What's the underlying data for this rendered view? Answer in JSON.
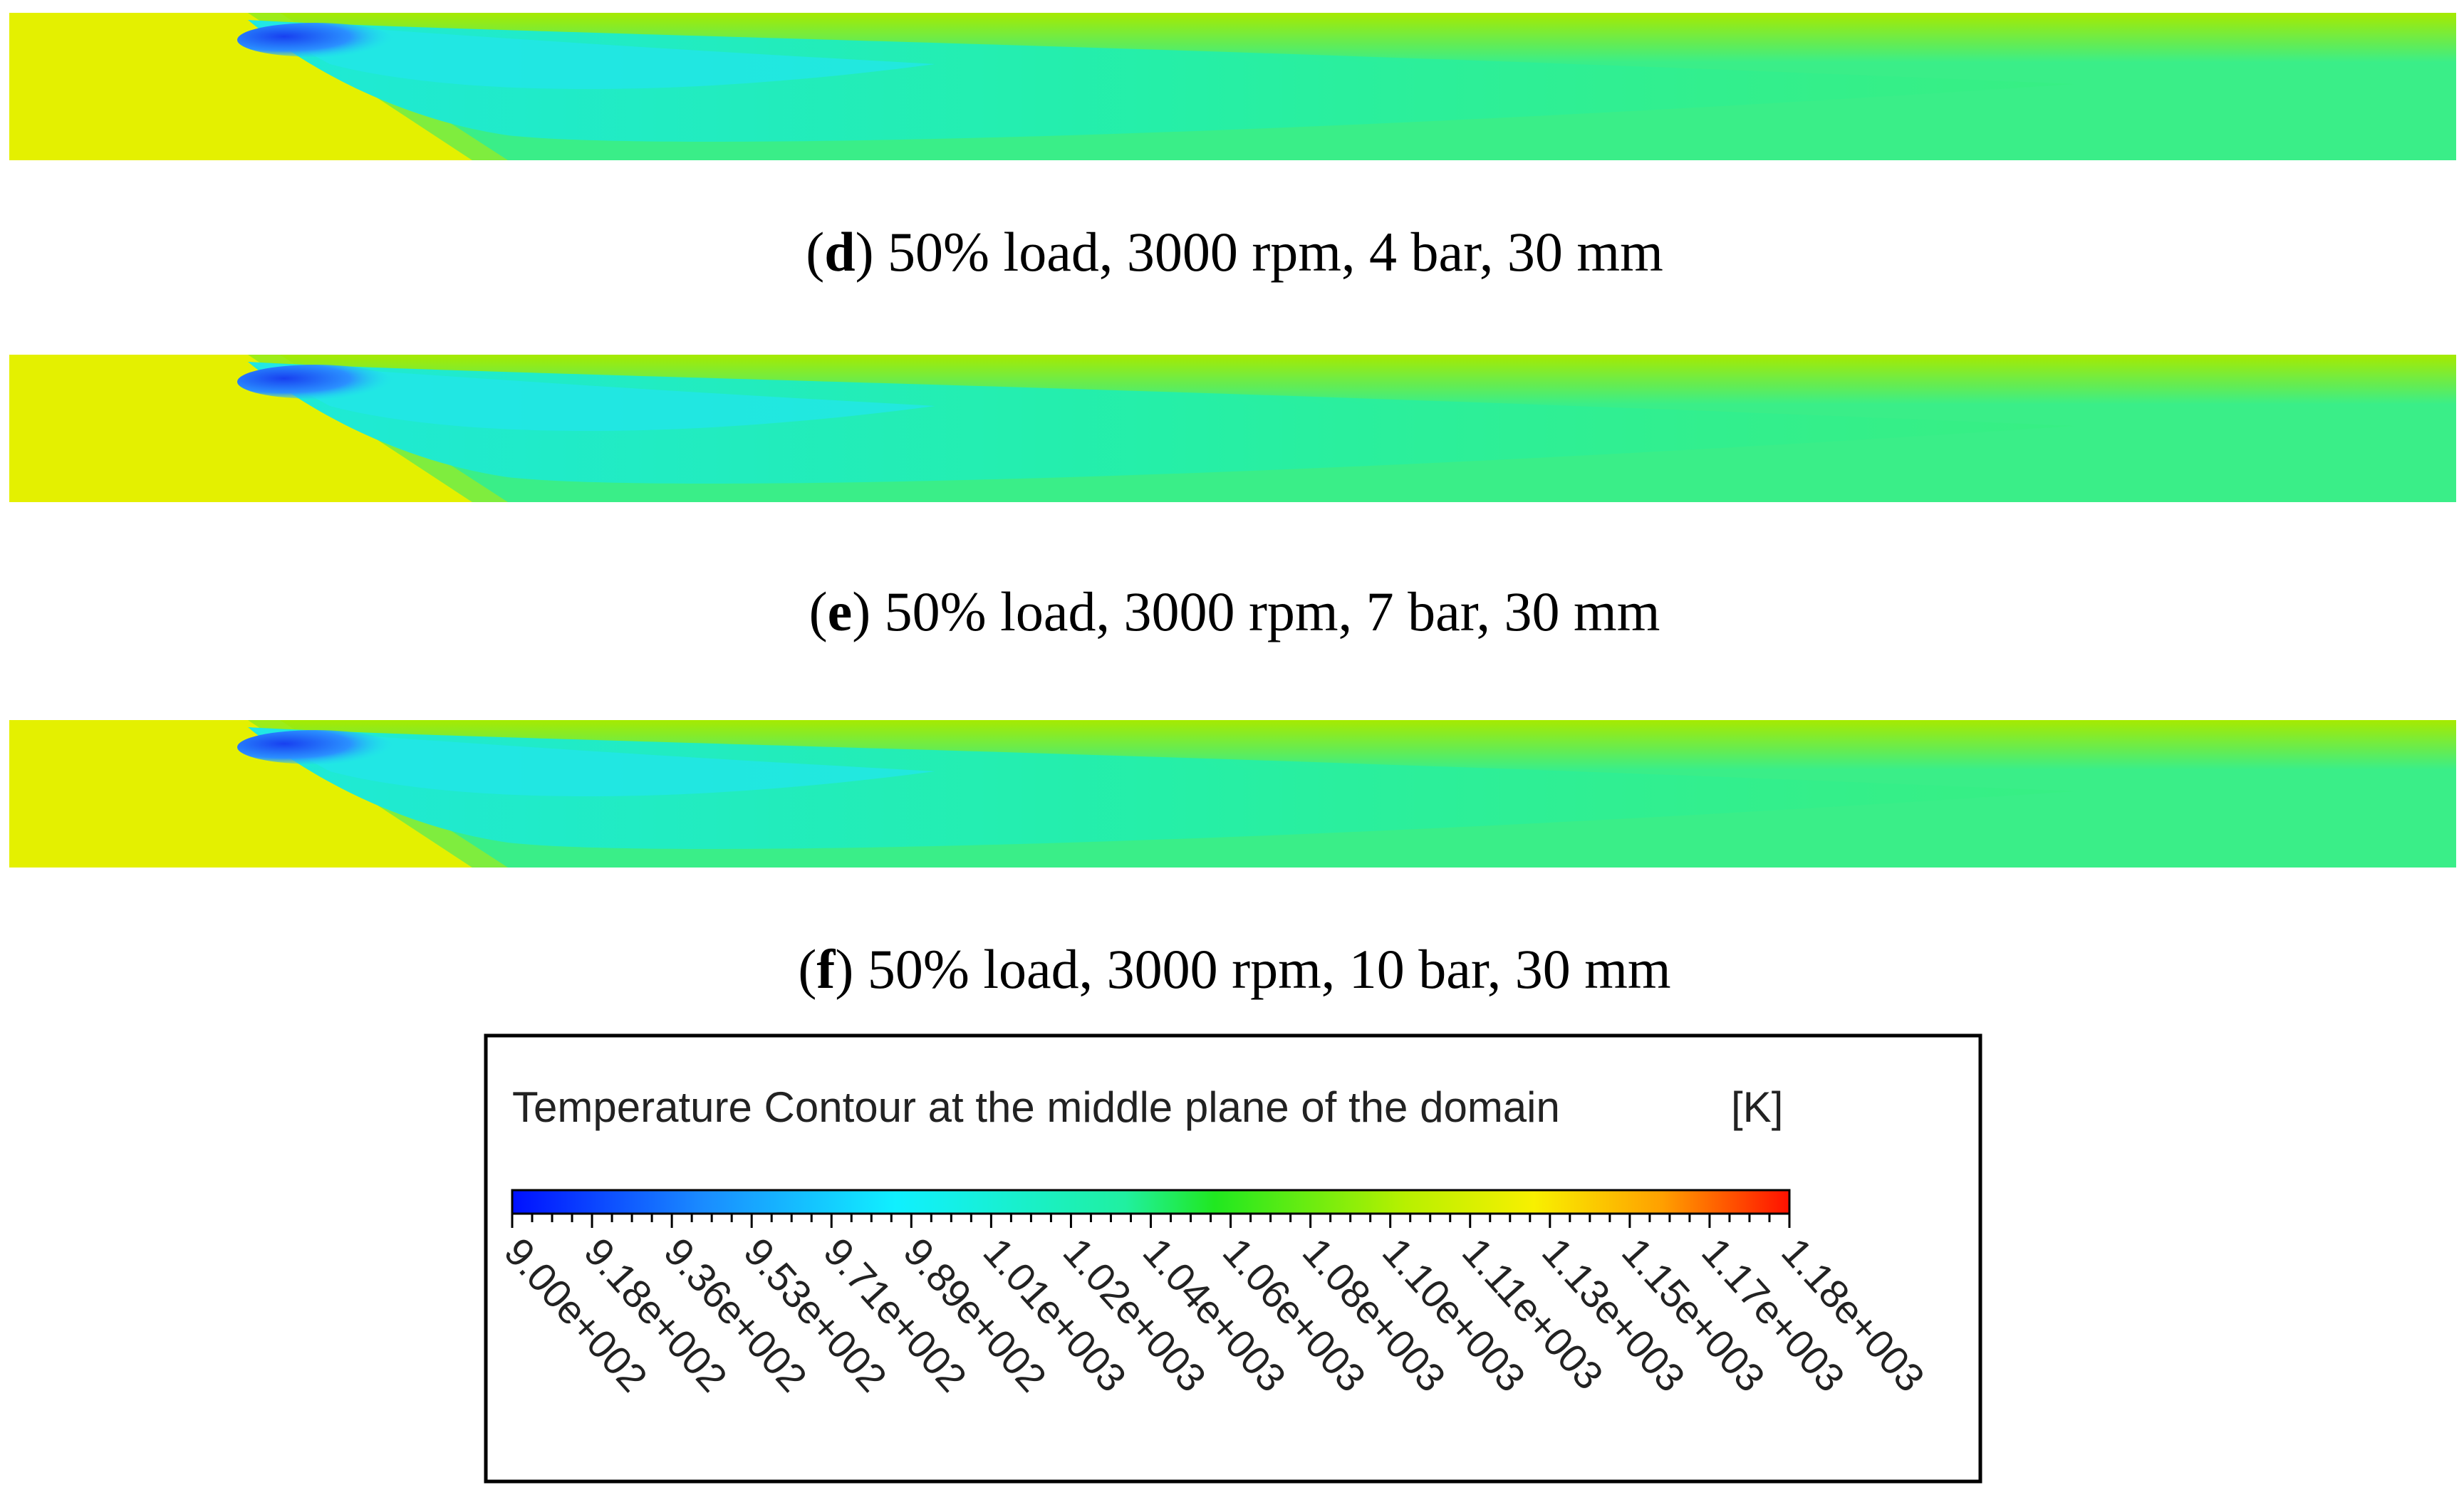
{
  "panels": [
    {
      "caption_parts": [
        "(",
        "d",
        ") 50% load, 3000 rpm, 4 bar, 30 mm"
      ]
    },
    {
      "caption_parts": [
        "(",
        "e",
        ") 50% load, 3000 rpm, 7 bar, 30 mm"
      ]
    },
    {
      "caption_parts": [
        "(",
        "f",
        ") 50% load, 3000 rpm, 10 bar, 30 mm"
      ]
    }
  ],
  "legend": {
    "title": "Temperature Contour at the middle plane of the domain",
    "unit": "[K]",
    "ticks": [
      "9.00e+002",
      "9.18e+002",
      "9.36e+002",
      "9.53e+002",
      "9.71e+002",
      "9.89e+002",
      "1.01e+003",
      "1.02e+003",
      "1.04e+003",
      "1.06e+003",
      "1.08e+003",
      "1.10e+003",
      "1.11e+003",
      "1.13e+003",
      "1.15e+003",
      "1.17e+003",
      "1.18e+003"
    ]
  }
}
